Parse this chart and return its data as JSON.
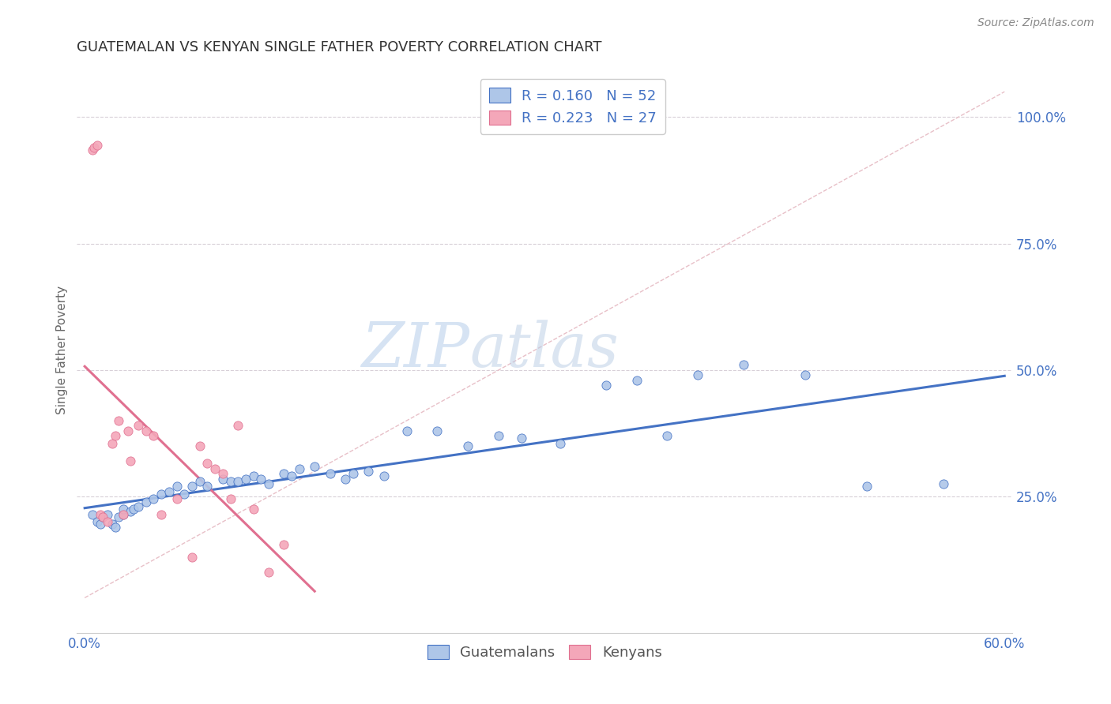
{
  "title": "GUATEMALAN VS KENYAN SINGLE FATHER POVERTY CORRELATION CHART",
  "source": "Source: ZipAtlas.com",
  "ylabel": "Single Father Poverty",
  "ytick_labels": [
    "100.0%",
    "75.0%",
    "50.0%",
    "25.0%"
  ],
  "ytick_values": [
    1.0,
    0.75,
    0.5,
    0.25
  ],
  "xlim": [
    0.0,
    0.6
  ],
  "ylim": [
    -0.02,
    1.1
  ],
  "watermark_zip": "ZIP",
  "watermark_atlas": "atlas",
  "legend_r1": "R = 0.160",
  "legend_n1": "N = 52",
  "legend_r2": "R = 0.223",
  "legend_n2": "N = 27",
  "guatemalan_color": "#aec6e8",
  "kenyan_color": "#f4a7b9",
  "trendline_guatemalan_color": "#4472c4",
  "trendline_kenyan_color": "#e07090",
  "ref_line_color": "#e8c0c8",
  "guatemalan_x": [
    0.005,
    0.008,
    0.01,
    0.012,
    0.015,
    0.018,
    0.02,
    0.022,
    0.025,
    0.025,
    0.03,
    0.032,
    0.035,
    0.04,
    0.045,
    0.05,
    0.055,
    0.06,
    0.065,
    0.07,
    0.075,
    0.08,
    0.09,
    0.095,
    0.1,
    0.105,
    0.11,
    0.115,
    0.12,
    0.13,
    0.135,
    0.14,
    0.15,
    0.16,
    0.17,
    0.175,
    0.185,
    0.195,
    0.21,
    0.23,
    0.25,
    0.27,
    0.285,
    0.31,
    0.34,
    0.36,
    0.38,
    0.4,
    0.43,
    0.47,
    0.51,
    0.56
  ],
  "guatemalan_y": [
    0.215,
    0.2,
    0.195,
    0.21,
    0.215,
    0.195,
    0.19,
    0.21,
    0.215,
    0.225,
    0.22,
    0.225,
    0.23,
    0.24,
    0.245,
    0.255,
    0.26,
    0.27,
    0.255,
    0.27,
    0.28,
    0.27,
    0.285,
    0.28,
    0.28,
    0.285,
    0.29,
    0.285,
    0.275,
    0.295,
    0.29,
    0.305,
    0.31,
    0.295,
    0.285,
    0.295,
    0.3,
    0.29,
    0.38,
    0.38,
    0.35,
    0.37,
    0.365,
    0.355,
    0.47,
    0.48,
    0.37,
    0.49,
    0.51,
    0.49,
    0.27,
    0.275
  ],
  "kenyan_x": [
    0.005,
    0.006,
    0.008,
    0.01,
    0.012,
    0.015,
    0.018,
    0.02,
    0.022,
    0.025,
    0.028,
    0.03,
    0.035,
    0.04,
    0.045,
    0.05,
    0.06,
    0.07,
    0.075,
    0.08,
    0.085,
    0.09,
    0.095,
    0.1,
    0.11,
    0.12,
    0.13
  ],
  "kenyan_y": [
    0.935,
    0.94,
    0.945,
    0.215,
    0.21,
    0.2,
    0.355,
    0.37,
    0.4,
    0.215,
    0.38,
    0.32,
    0.39,
    0.38,
    0.37,
    0.215,
    0.245,
    0.13,
    0.35,
    0.315,
    0.305,
    0.295,
    0.245,
    0.39,
    0.225,
    0.1,
    0.155
  ]
}
